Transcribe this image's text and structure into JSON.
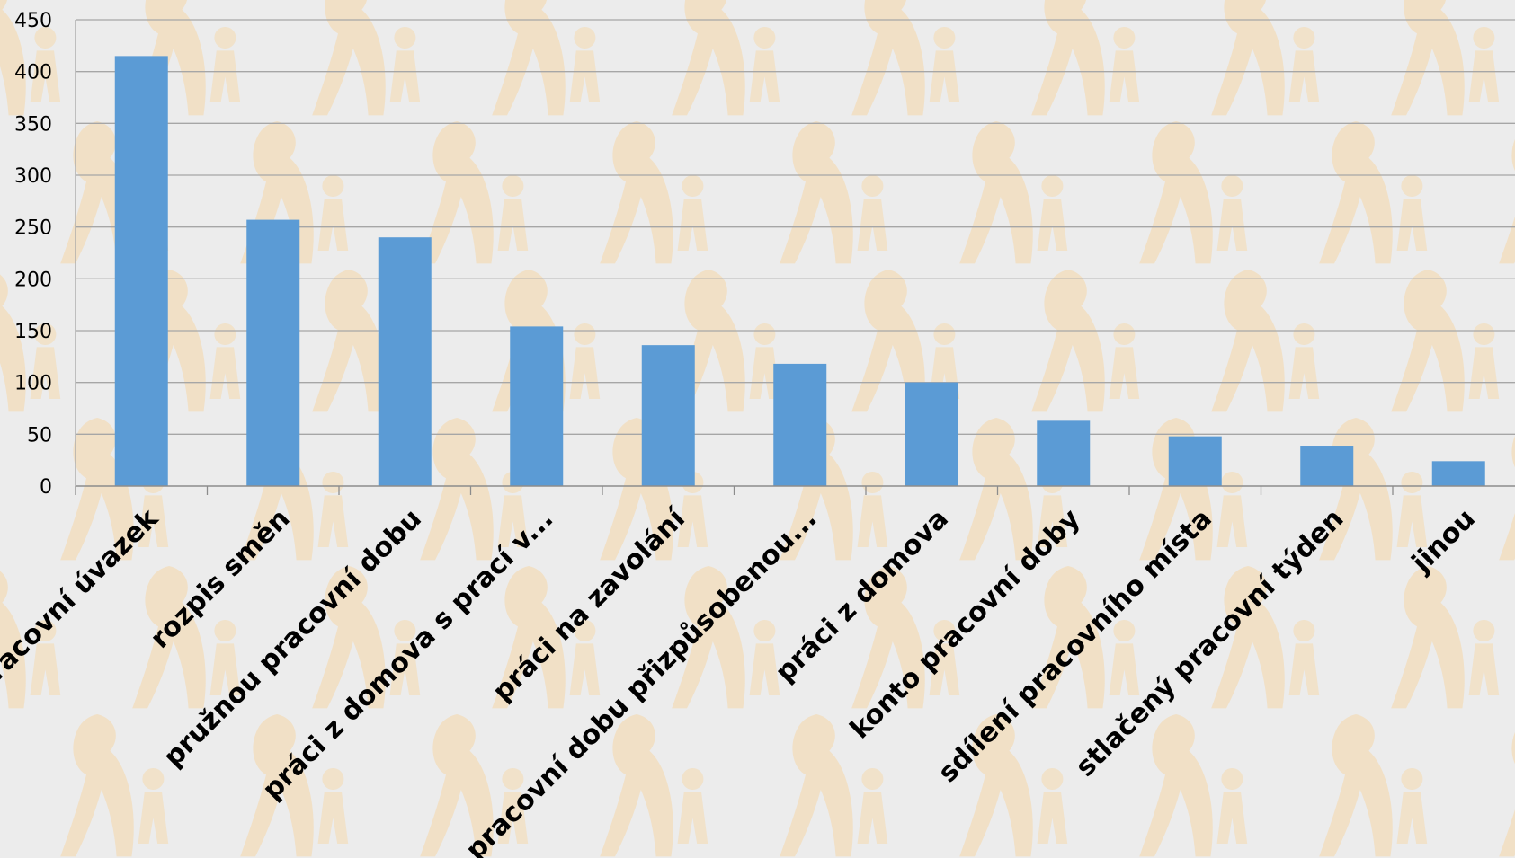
{
  "chart_data": {
    "type": "bar",
    "categories": [
      "pracovní úvazek",
      "rozpis směn",
      "pružnou pracovní dobu",
      "práci z domova s prací v...",
      "práci na zavolání",
      "pracovní dobu přizpůsobenou...",
      "práci z domova",
      "konto pracovní doby",
      "sdílení pracovního místa",
      "stlačený pracovní týden",
      "jinou"
    ],
    "values": [
      415,
      257,
      240,
      154,
      136,
      118,
      100,
      63,
      48,
      39,
      24
    ],
    "ylim": [
      0,
      450
    ],
    "yticks": [
      0,
      50,
      100,
      150,
      200,
      250,
      300,
      350,
      400,
      450
    ],
    "grid": true,
    "bar_color": "#5b9bd5",
    "title": "",
    "xlabel": "",
    "ylabel": ""
  },
  "colors": {
    "background": "#ececec",
    "gridline": "#a6a6a6",
    "watermark": "#f6d7a8"
  }
}
